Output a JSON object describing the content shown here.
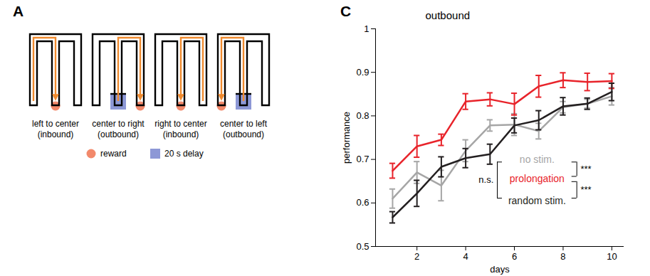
{
  "diagram": {
    "panel_label": "A",
    "arms": [
      "left",
      "center",
      "right"
    ],
    "path_color": "#ef8a2e",
    "items": [
      {
        "label": "left to center",
        "sublabel": "(inbound)",
        "from": "left",
        "to": "center",
        "delay_at": null
      },
      {
        "label": "center to right",
        "sublabel": "(outbound)",
        "from": "center",
        "to": "right",
        "delay_at": "center"
      },
      {
        "label": "right to center",
        "sublabel": "(inbound)",
        "from": "right",
        "to": "center",
        "delay_at": null
      },
      {
        "label": "center to left",
        "sublabel": "(outbound)",
        "from": "center",
        "to": "left",
        "delay_at": "center"
      }
    ],
    "legend": [
      {
        "label": "reward",
        "color": "#f2896b",
        "marker": "circle"
      },
      {
        "label": "20 s delay",
        "color": "#8d98d6",
        "marker": "square"
      }
    ]
  },
  "chart_data": {
    "type": "line",
    "panel_label": "C",
    "title": "outbound",
    "xlabel": "days",
    "ylabel": "performance",
    "x": [
      1,
      2,
      3,
      4,
      5,
      6,
      7,
      8,
      9,
      10
    ],
    "xlim": [
      0.3,
      10.5
    ],
    "xticks": [
      2,
      4,
      6,
      8,
      10
    ],
    "ylim": [
      0.5,
      1
    ],
    "yticks": [
      0.5,
      0.6,
      0.7,
      0.8,
      0.9,
      1
    ],
    "series": [
      {
        "name": "no stim.",
        "color": "#a6a6a6",
        "values": [
          0.61,
          0.67,
          0.64,
          0.72,
          0.778,
          0.78,
          0.765,
          0.82,
          0.828,
          0.845
        ],
        "errors": [
          0.022,
          0.025,
          0.035,
          0.025,
          0.013,
          0.025,
          0.018,
          0.013,
          0.01,
          0.02
        ]
      },
      {
        "name": "prolongation",
        "color": "#e8232a",
        "values": [
          0.674,
          0.73,
          0.745,
          0.833,
          0.838,
          0.827,
          0.868,
          0.882,
          0.878,
          0.88
        ],
        "errors": [
          0.017,
          0.025,
          0.013,
          0.018,
          0.015,
          0.025,
          0.025,
          0.017,
          0.02,
          0.017
        ]
      },
      {
        "name": "random stim.",
        "color": "#231f20",
        "values": [
          0.567,
          0.622,
          0.683,
          0.703,
          0.712,
          0.778,
          0.79,
          0.822,
          0.828,
          0.855
        ],
        "errors": [
          0.013,
          0.03,
          0.023,
          0.022,
          0.023,
          0.017,
          0.022,
          0.02,
          0.013,
          0.02
        ]
      }
    ],
    "annotations": [
      {
        "between": [
          "no stim.",
          "random stim."
        ],
        "label": "n.s."
      },
      {
        "between": [
          "no stim.",
          "prolongation"
        ],
        "label": "***"
      },
      {
        "between": [
          "prolongation",
          "random stim."
        ],
        "label": "***"
      }
    ]
  }
}
